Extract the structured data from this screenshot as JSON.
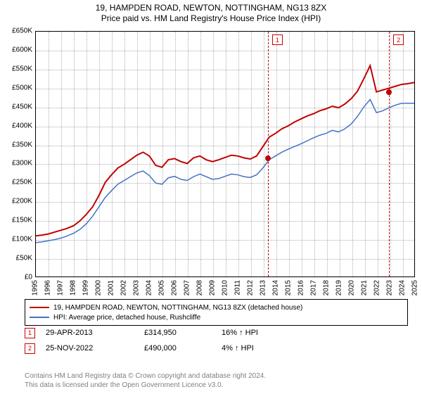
{
  "title1": "19, HAMPDEN ROAD, NEWTON, NOTTINGHAM, NG13 8ZX",
  "title2": "Price paid vs. HM Land Registry's House Price Index (HPI)",
  "chart": {
    "type": "line",
    "background_color": "#ffffff",
    "grid_color": "#b0b0b0",
    "axis_color": "#000000",
    "ylim": [
      0,
      650000
    ],
    "ytick_step": 50000,
    "y_labels": [
      "£0",
      "£50K",
      "£100K",
      "£150K",
      "£200K",
      "£250K",
      "£300K",
      "£350K",
      "£400K",
      "£450K",
      "£500K",
      "£550K",
      "£600K",
      "£650K"
    ],
    "xlim": [
      1995,
      2025
    ],
    "x_labels": [
      "1995",
      "1996",
      "1997",
      "1998",
      "1999",
      "2000",
      "2001",
      "2002",
      "2003",
      "2004",
      "2005",
      "2006",
      "2007",
      "2008",
      "2009",
      "2010",
      "2011",
      "2012",
      "2013",
      "2014",
      "2015",
      "2016",
      "2017",
      "2018",
      "2019",
      "2020",
      "2021",
      "2022",
      "2023",
      "2024",
      "2025"
    ],
    "label_fontsize": 10
  },
  "series": {
    "property": {
      "label": "19, HAMPDEN ROAD, NEWTON, NOTTINGHAM, NG13 8ZX (detached house)",
      "color": "#c00000",
      "width": 2,
      "year_start": 1995,
      "values": [
        108,
        110,
        113,
        118,
        123,
        128,
        135,
        148,
        165,
        185,
        215,
        250,
        270,
        288,
        298,
        310,
        322,
        330,
        320,
        295,
        290,
        310,
        313,
        305,
        300,
        315,
        320,
        310,
        305,
        310,
        316,
        322,
        320,
        315,
        312,
        320,
        345,
        370,
        380,
        392,
        400,
        410,
        418,
        426,
        432,
        440,
        445,
        452,
        448,
        458,
        472,
        492,
        525,
        560,
        490,
        495,
        500,
        505,
        510,
        512,
        515
      ]
    },
    "hpi": {
      "label": "HPI: Average price, detached house, Rushcliffe",
      "color": "#4472c4",
      "width": 1.5,
      "year_start": 1995,
      "values": [
        90,
        92,
        95,
        98,
        102,
        108,
        115,
        125,
        140,
        160,
        185,
        210,
        228,
        245,
        255,
        265,
        275,
        280,
        268,
        248,
        245,
        262,
        266,
        258,
        255,
        265,
        272,
        265,
        258,
        260,
        266,
        272,
        270,
        265,
        263,
        270,
        288,
        310,
        320,
        330,
        338,
        345,
        352,
        360,
        368,
        375,
        380,
        388,
        384,
        392,
        405,
        425,
        450,
        470,
        435,
        440,
        448,
        455,
        460,
        460,
        460
      ]
    }
  },
  "markers": [
    {
      "num": "1",
      "year": 2013.32,
      "value": 315000,
      "color": "#c00000"
    },
    {
      "num": "2",
      "year": 2022.9,
      "value": 490000,
      "color": "#c00000"
    }
  ],
  "legend_rows": [
    {
      "color": "#c00000",
      "label_path": "series.property.label"
    },
    {
      "color": "#4472c4",
      "label_path": "series.hpi.label"
    }
  ],
  "data_rows": [
    {
      "num": "1",
      "date": "29-APR-2013",
      "price": "£314,950",
      "pct": "16%",
      "arrow": "↑",
      "tag": "HPI"
    },
    {
      "num": "2",
      "date": "25-NOV-2022",
      "price": "£490,000",
      "pct": "4%",
      "arrow": "↑",
      "tag": "HPI"
    }
  ],
  "footer1": "Contains HM Land Registry data © Crown copyright and database right 2024.",
  "footer2": "This data is licensed under the Open Government Licence v3.0."
}
